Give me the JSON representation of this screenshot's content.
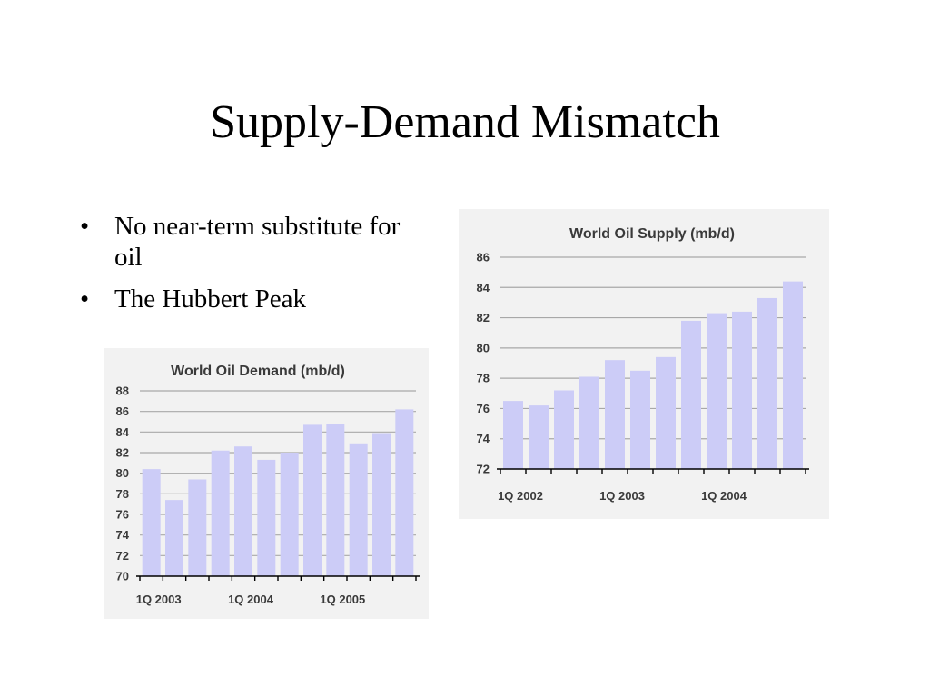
{
  "slide": {
    "title": "Supply-Demand Mismatch",
    "bullets": [
      "No near-term substitute for oil",
      "The Hubbert Peak"
    ],
    "bullet_symbol": "•"
  },
  "chart_data": [
    {
      "id": "supply",
      "type": "bar",
      "title": "World Oil Supply (mb/d)",
      "xlabel": "",
      "ylabel": "",
      "ylim": [
        72,
        86
      ],
      "yticks": [
        72,
        74,
        76,
        78,
        80,
        82,
        84,
        86
      ],
      "grid": true,
      "x_labels": [
        {
          "label": "1Q 2002",
          "at": 0
        },
        {
          "label": "1Q 2003",
          "at": 4
        },
        {
          "label": "1Q 2004",
          "at": 8
        }
      ],
      "values": [
        76.5,
        76.2,
        77.2,
        78.1,
        79.2,
        78.5,
        79.4,
        81.8,
        82.3,
        82.4,
        83.3,
        84.4
      ],
      "bar_color": "#ccccf7"
    },
    {
      "id": "demand",
      "type": "bar",
      "title": "World Oil Demand (mb/d)",
      "xlabel": "",
      "ylabel": "",
      "ylim": [
        70,
        88
      ],
      "yticks": [
        70,
        72,
        74,
        76,
        78,
        80,
        82,
        84,
        86,
        88
      ],
      "grid": true,
      "x_labels": [
        {
          "label": "1Q 2003",
          "at": 0
        },
        {
          "label": "1Q 2004",
          "at": 4
        },
        {
          "label": "1Q 2005",
          "at": 8
        }
      ],
      "values": [
        80.4,
        77.4,
        79.4,
        82.2,
        82.6,
        81.3,
        82.0,
        84.7,
        84.8,
        82.9,
        83.9,
        86.2
      ],
      "bar_color": "#ccccf7"
    }
  ]
}
